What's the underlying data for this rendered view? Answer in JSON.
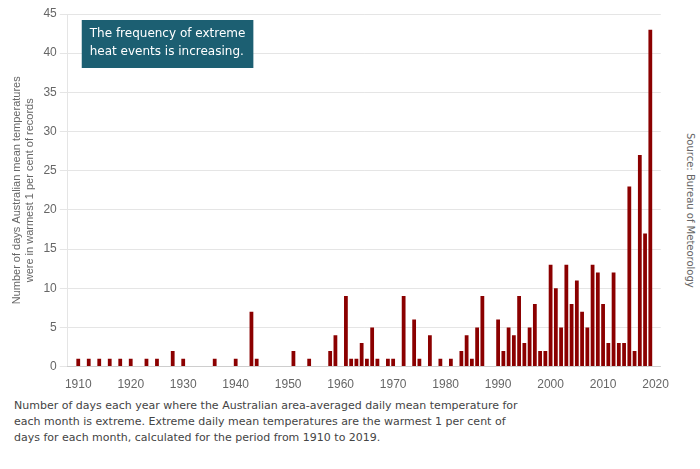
{
  "chart_data": {
    "type": "bar",
    "x": [
      1910,
      1911,
      1912,
      1913,
      1914,
      1915,
      1916,
      1917,
      1918,
      1919,
      1920,
      1921,
      1922,
      1923,
      1924,
      1925,
      1926,
      1927,
      1928,
      1929,
      1930,
      1931,
      1932,
      1933,
      1934,
      1935,
      1936,
      1937,
      1938,
      1939,
      1940,
      1941,
      1942,
      1943,
      1944,
      1945,
      1946,
      1947,
      1948,
      1949,
      1950,
      1951,
      1952,
      1953,
      1954,
      1955,
      1956,
      1957,
      1958,
      1959,
      1960,
      1961,
      1962,
      1963,
      1964,
      1965,
      1966,
      1967,
      1968,
      1969,
      1970,
      1971,
      1972,
      1973,
      1974,
      1975,
      1976,
      1977,
      1978,
      1979,
      1980,
      1981,
      1982,
      1983,
      1984,
      1985,
      1986,
      1987,
      1988,
      1989,
      1990,
      1991,
      1992,
      1993,
      1994,
      1995,
      1996,
      1997,
      1998,
      1999,
      2000,
      2001,
      2002,
      2003,
      2004,
      2005,
      2006,
      2007,
      2008,
      2009,
      2010,
      2011,
      2012,
      2013,
      2014,
      2015,
      2016,
      2017,
      2018,
      2019
    ],
    "values": [
      1,
      0,
      1,
      0,
      1,
      0,
      1,
      0,
      1,
      0,
      1,
      0,
      0,
      1,
      0,
      1,
      0,
      0,
      2,
      0,
      1,
      0,
      0,
      0,
      0,
      0,
      1,
      0,
      0,
      0,
      1,
      0,
      0,
      7,
      1,
      0,
      0,
      0,
      0,
      0,
      0,
      2,
      0,
      0,
      1,
      0,
      0,
      0,
      2,
      4,
      0,
      9,
      1,
      1,
      3,
      1,
      5,
      1,
      0,
      1,
      1,
      0,
      9,
      0,
      6,
      1,
      0,
      4,
      0,
      1,
      0,
      1,
      0,
      2,
      4,
      1,
      5,
      9,
      0,
      0,
      6,
      2,
      5,
      4,
      9,
      3,
      5,
      8,
      2,
      2,
      13,
      10,
      5,
      13,
      8,
      11,
      7,
      5,
      13,
      12,
      8,
      3,
      12,
      3,
      3,
      23,
      2,
      27,
      17,
      43
    ],
    "color": "#8B0000",
    "y_label": "Number of days Australian mean temperatures\nwere in warmest 1 per cent of records",
    "xlim": [
      1908,
      2021
    ],
    "xticks": [
      1910,
      1920,
      1930,
      1940,
      1950,
      1960,
      1970,
      1980,
      1990,
      2000,
      2010,
      2020
    ],
    "ylim": [
      0,
      45
    ],
    "yticks": [
      0,
      5,
      10,
      15,
      20,
      25,
      30,
      35,
      40,
      45
    ],
    "grid": true,
    "annotations": [
      {
        "text": "The frequency of extreme\nheat events is increasing.",
        "color": "#1c5f72"
      }
    ],
    "source": "Source: Bureau of Meteorology",
    "caption": "Number of days each year where the Australian area-averaged daily mean temperature for\neach month is extreme. Extreme daily mean temperatures are the warmest 1 per cent of\ndays for each month, calculated for the period from 1910 to 2019."
  }
}
